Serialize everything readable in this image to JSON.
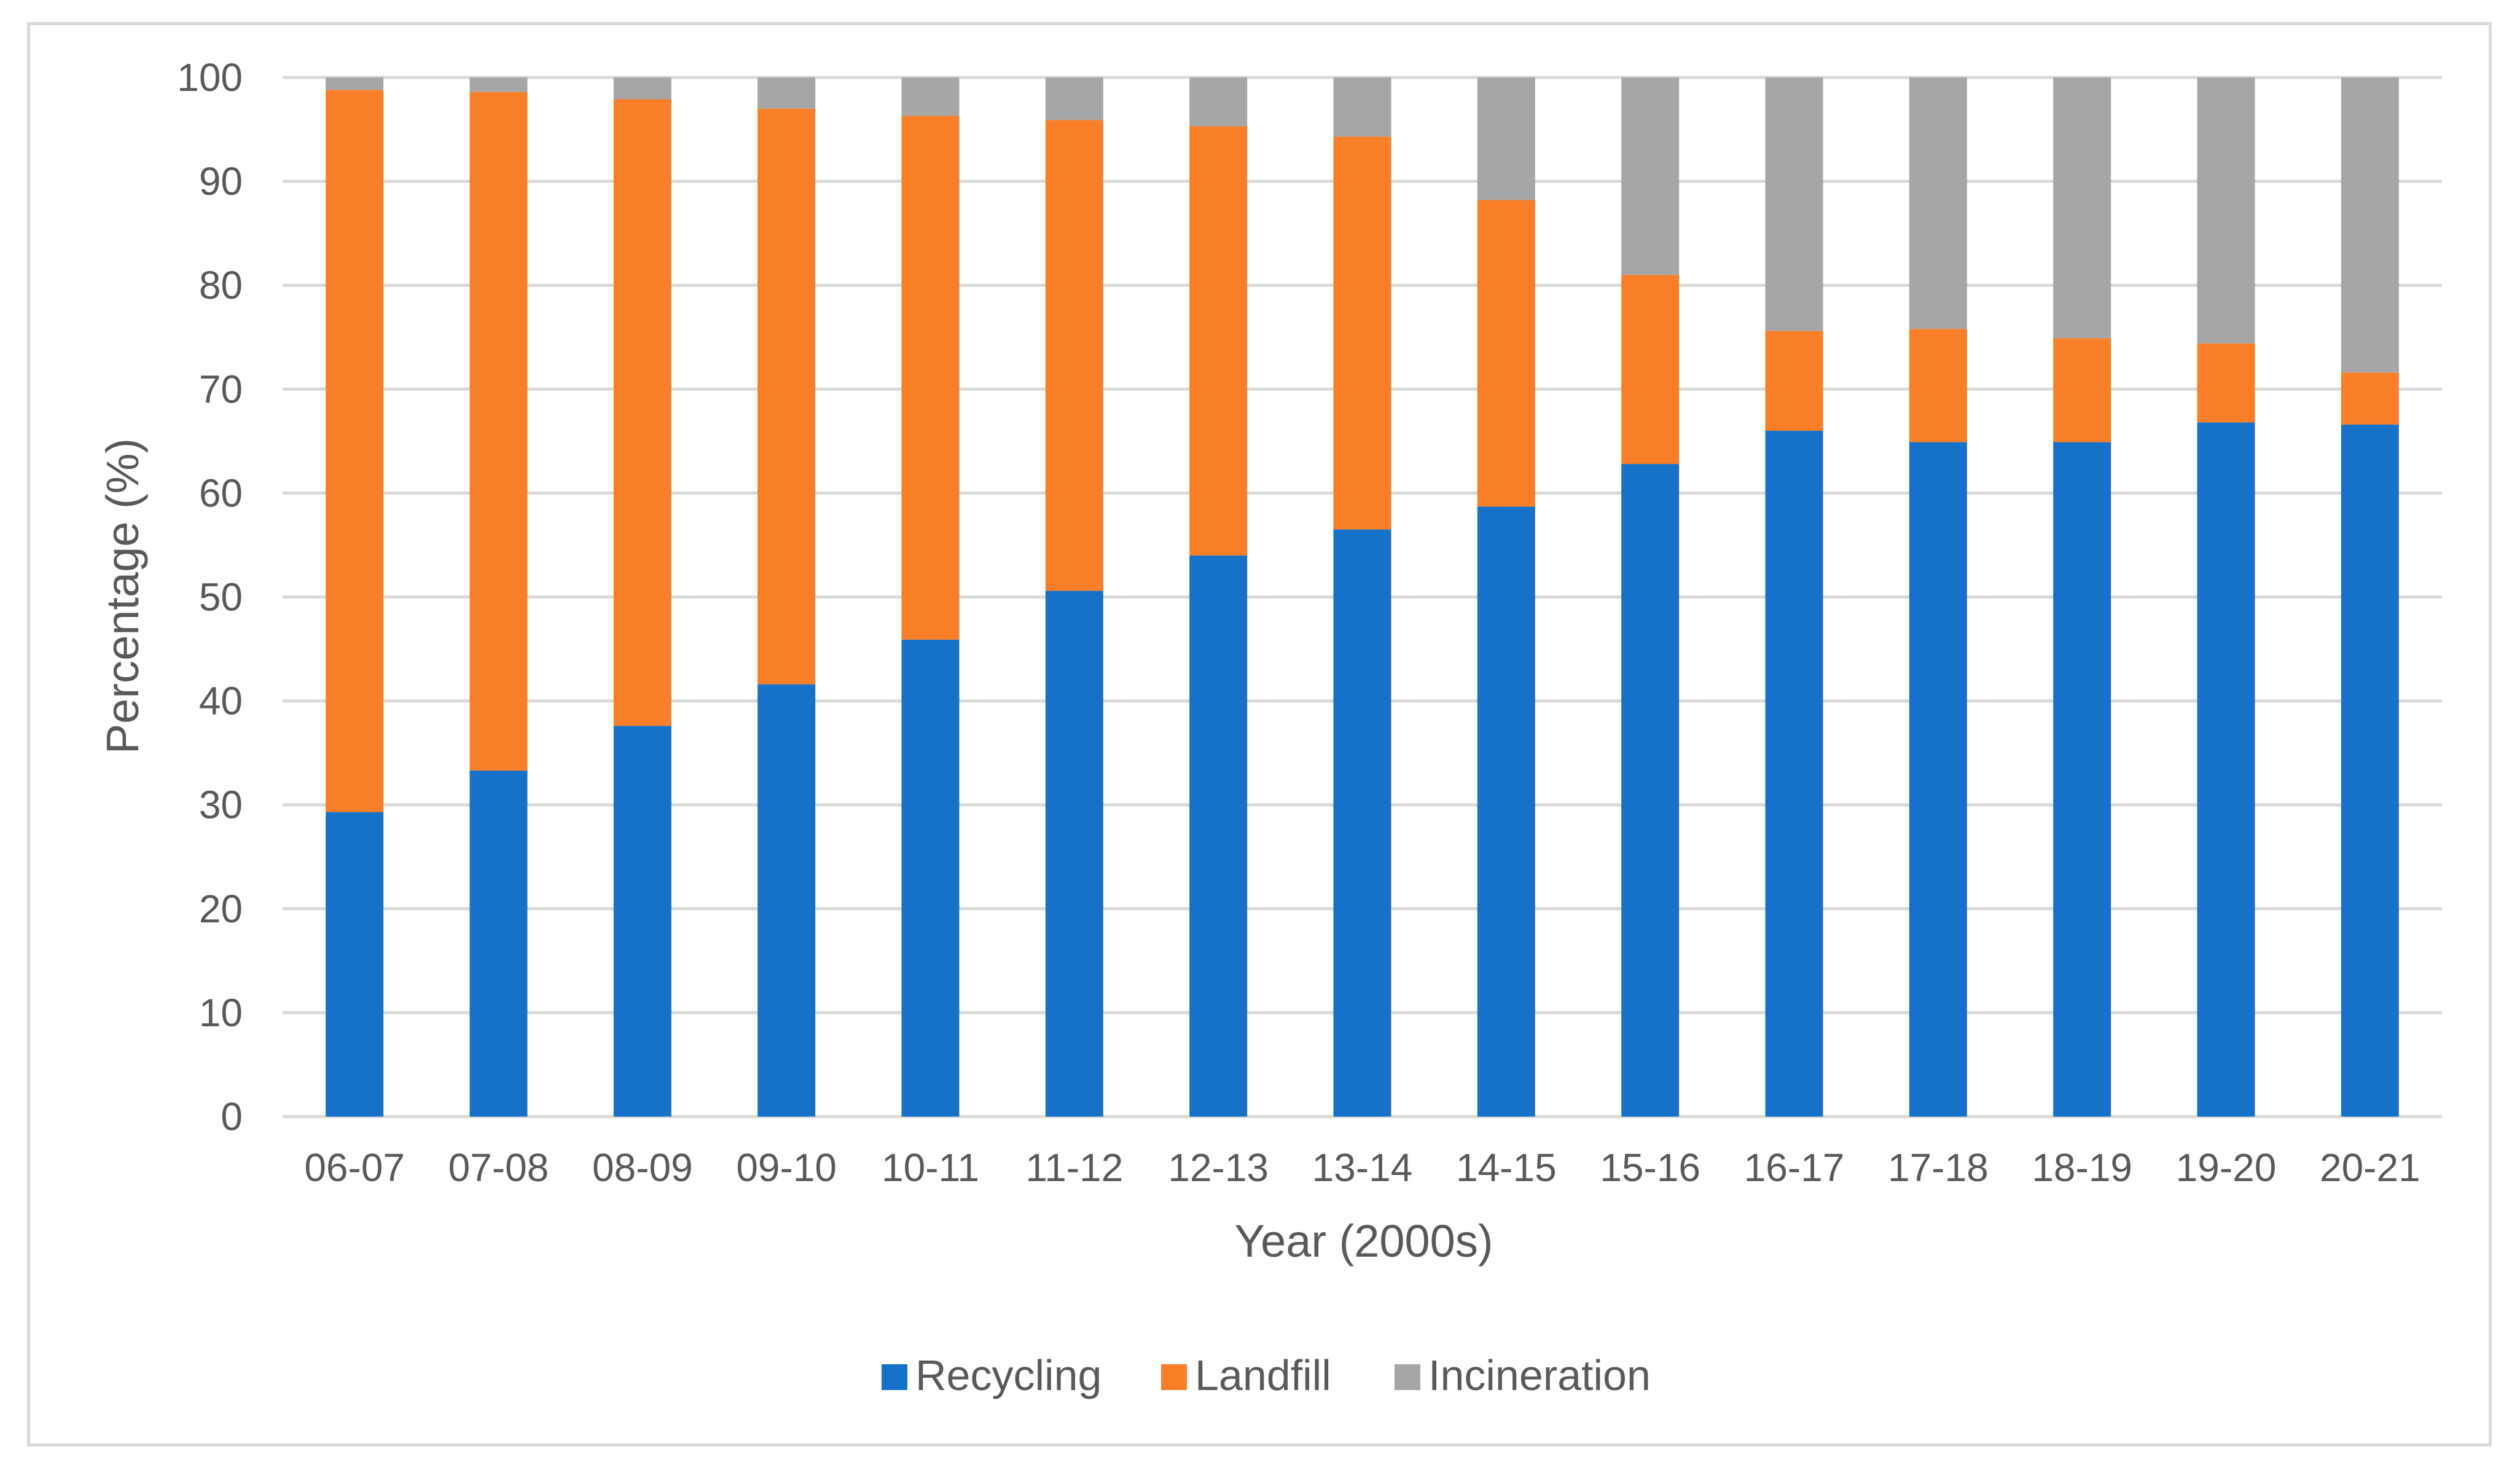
{
  "chart_data": {
    "type": "bar",
    "stacked": true,
    "title": "",
    "xlabel": "Year (2000s)",
    "ylabel": "Percentage (%)",
    "ylim": [
      0,
      100
    ],
    "yticks": [
      0,
      10,
      20,
      30,
      40,
      50,
      60,
      70,
      80,
      90,
      100
    ],
    "grid": true,
    "legend_position": "bottom",
    "categories": [
      "06-07",
      "07-08",
      "08-09",
      "09-10",
      "10-11",
      "11-12",
      "12-13",
      "13-14",
      "14-15",
      "15-16",
      "16-17",
      "17-18",
      "18-19",
      "19-20",
      "20-21"
    ],
    "series": [
      {
        "name": "Recycling",
        "color": "#1572c8",
        "values": [
          29.3,
          33.3,
          37.6,
          41.6,
          45.9,
          50.6,
          54.0,
          56.5,
          58.7,
          62.8,
          66.0,
          64.9,
          64.9,
          66.8,
          66.6
        ]
      },
      {
        "name": "Landfill",
        "color": "#f87e27",
        "values": [
          69.5,
          65.3,
          60.3,
          55.4,
          50.4,
          45.3,
          41.3,
          37.8,
          29.5,
          18.2,
          9.6,
          10.9,
          10.0,
          7.6,
          5.0
        ]
      },
      {
        "name": "Incineration",
        "color": "#a6a6a6",
        "values": [
          1.2,
          1.4,
          2.1,
          3.0,
          3.7,
          4.1,
          4.7,
          5.7,
          11.8,
          19.0,
          24.4,
          24.2,
          25.1,
          25.6,
          28.4
        ]
      }
    ]
  }
}
